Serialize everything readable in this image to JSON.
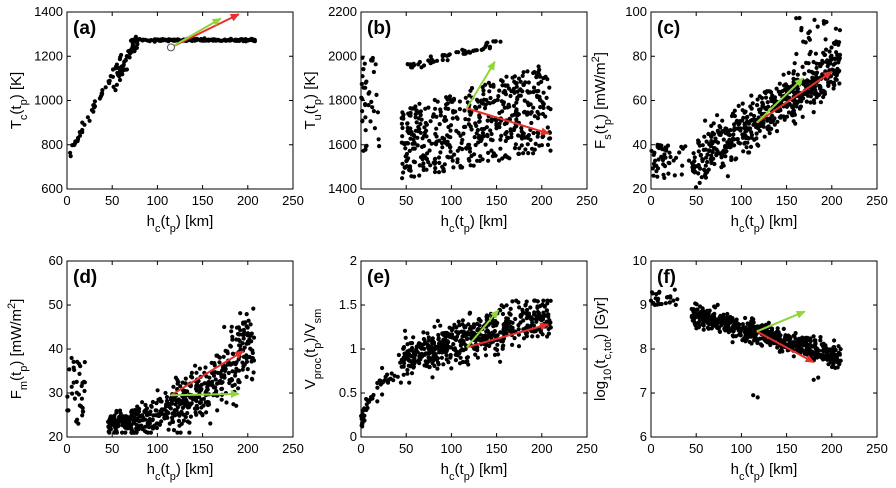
{
  "chart_data": [
    {
      "panel": "(a)",
      "type": "scatter",
      "xlabel": "h_c(t_p) [km]",
      "ylabel": "T_c(t_p) [K]",
      "xlim": [
        0,
        250
      ],
      "ylim": [
        600,
        1400
      ],
      "xticks": [
        0,
        50,
        100,
        150,
        200,
        250
      ],
      "yticks": [
        600,
        800,
        1000,
        1200,
        1400
      ],
      "gen": "A",
      "arrows": [
        {
          "color": "#e8302a",
          "from": [
            115,
            1240
          ],
          "to": [
            190,
            1390
          ]
        },
        {
          "color": "#8fd63a",
          "from": [
            115,
            1240
          ],
          "to": [
            170,
            1370
          ]
        }
      ],
      "marker": {
        "at": [
          115,
          1240
        ],
        "label": "open circle"
      }
    },
    {
      "panel": "(b)",
      "type": "scatter",
      "xlabel": "h_c(t_p) [km]",
      "ylabel": "T_u(t_p) [K]",
      "xlim": [
        0,
        250
      ],
      "ylim": [
        1400,
        2200
      ],
      "xticks": [
        0,
        50,
        100,
        150,
        200,
        250
      ],
      "yticks": [
        1400,
        1600,
        1800,
        2000,
        2200
      ],
      "gen": "B",
      "arrows": [
        {
          "color": "#e8302a",
          "from": [
            117,
            1765
          ],
          "to": [
            208,
            1650
          ]
        },
        {
          "color": "#8fd63a",
          "from": [
            117,
            1765
          ],
          "to": [
            148,
            1975
          ]
        }
      ]
    },
    {
      "panel": "(c)",
      "type": "scatter",
      "xlabel": "h_c(t_p) [km]",
      "ylabel": "F_s(t_p) [mW/m^2]",
      "xlim": [
        0,
        250
      ],
      "ylim": [
        20,
        100
      ],
      "xticks": [
        0,
        50,
        100,
        150,
        200,
        250
      ],
      "yticks": [
        20,
        40,
        60,
        80,
        100
      ],
      "gen": "C",
      "arrows": [
        {
          "color": "#e8302a",
          "from": [
            117,
            50
          ],
          "to": [
            200,
            73
          ]
        },
        {
          "color": "#8fd63a",
          "from": [
            117,
            50
          ],
          "to": [
            168,
            70
          ]
        }
      ]
    },
    {
      "panel": "(d)",
      "type": "scatter",
      "xlabel": "h_c(t_p) [km]",
      "ylabel": "F_m(t_p) [mW/m^2]",
      "xlim": [
        0,
        250
      ],
      "ylim": [
        20,
        60
      ],
      "xticks": [
        0,
        50,
        100,
        150,
        200,
        250
      ],
      "yticks": [
        20,
        30,
        40,
        50,
        60
      ],
      "gen": "D",
      "arrows": [
        {
          "color": "#e8302a",
          "from": [
            115,
            29.5
          ],
          "to": [
            195,
            39.5
          ]
        },
        {
          "color": "#8fd63a",
          "from": [
            115,
            29.5
          ],
          "to": [
            190,
            29.8
          ]
        }
      ]
    },
    {
      "panel": "(e)",
      "type": "scatter",
      "xlabel": "h_c(t_p) [km]",
      "ylabel": "V_proc(t_p)/V_sm",
      "xlim": [
        0,
        250
      ],
      "ylim": [
        0,
        2
      ],
      "xticks": [
        0,
        50,
        100,
        150,
        200,
        250
      ],
      "yticks": [
        0,
        0.5,
        1,
        1.5,
        2
      ],
      "yticklabels": [
        "0",
        "0.5",
        "1",
        "1.5",
        "2"
      ],
      "gen": "E",
      "arrows": [
        {
          "color": "#e8302a",
          "from": [
            117,
            1.02
          ],
          "to": [
            207,
            1.28
          ]
        },
        {
          "color": "#8fd63a",
          "from": [
            117,
            1.02
          ],
          "to": [
            152,
            1.44
          ]
        }
      ]
    },
    {
      "panel": "(f)",
      "type": "scatter",
      "xlabel": "h_c(t_p) [km]",
      "ylabel": "log_10(t_c,tot) [Gyr]",
      "xlim": [
        0,
        250
      ],
      "ylim": [
        6,
        10
      ],
      "xticks": [
        0,
        50,
        100,
        150,
        200,
        250
      ],
      "yticks": [
        6,
        7,
        8,
        9,
        10
      ],
      "gen": "F",
      "arrows": [
        {
          "color": "#e8302a",
          "from": [
            117,
            8.4
          ],
          "to": [
            180,
            7.7
          ]
        },
        {
          "color": "#8fd63a",
          "from": [
            117,
            8.4
          ],
          "to": [
            170,
            8.85
          ]
        }
      ]
    }
  ]
}
